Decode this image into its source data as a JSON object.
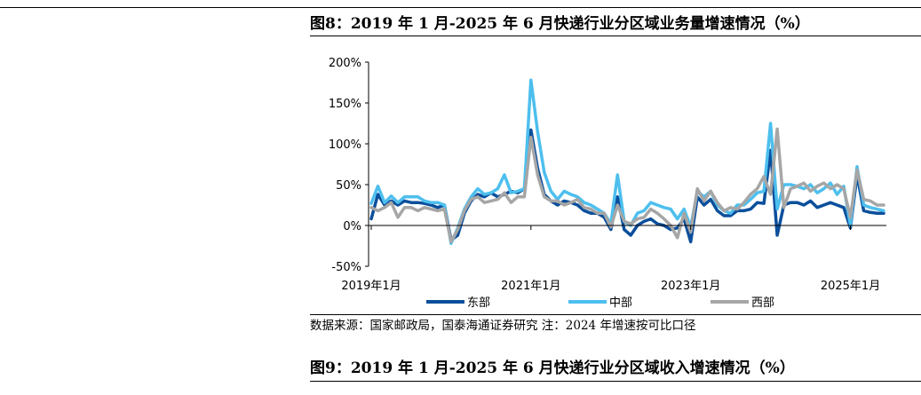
{
  "figure8": {
    "title": "图8：2019 年 1 月-2025 年 6 月快递行业分区域业务量增速情况（%）",
    "source": "数据来源：国家邮政局，国泰海通证券研究   注：2024 年增速按可比口径"
  },
  "figure9": {
    "title": "图9：2019 年 1 月-2025 年 6 月快递行业分区域收入增速情况（%）"
  },
  "colors": {
    "east": "#0b4f9c",
    "central": "#4dbfee",
    "west": "#a6a6a6",
    "axis": "#000000"
  },
  "chart_data": {
    "type": "line",
    "title": "",
    "xlabel": "",
    "ylabel": "",
    "ylim": [
      -50,
      200
    ],
    "yticks": [
      "-50%",
      "0%",
      "50%",
      "100%",
      "150%",
      "200%"
    ],
    "yticks_values": [
      -50,
      0,
      50,
      100,
      150,
      200
    ],
    "x_tick_labels": [
      {
        "index": 0,
        "label": "2019年1月"
      },
      {
        "index": 24,
        "label": "2021年1月"
      },
      {
        "index": 48,
        "label": "2023年1月"
      },
      {
        "index": 72,
        "label": "2025年1月"
      }
    ],
    "legend_position": "bottom",
    "series": [
      {
        "name": "东部",
        "values": [
          8,
          38,
          25,
          30,
          25,
          30,
          28,
          28,
          27,
          25,
          22,
          25,
          -18,
          -12,
          15,
          30,
          38,
          35,
          40,
          35,
          38,
          42,
          40,
          45,
          117,
          70,
          38,
          30,
          25,
          30,
          28,
          25,
          18,
          15,
          15,
          10,
          -5,
          35,
          -5,
          -12,
          0,
          5,
          8,
          2,
          0,
          -5,
          -3,
          8,
          -20,
          35,
          25,
          32,
          18,
          12,
          12,
          18,
          18,
          20,
          28,
          27,
          92,
          -12,
          25,
          28,
          28,
          25,
          30,
          22,
          25,
          28,
          25,
          22,
          -3,
          62,
          18,
          16,
          15,
          15
        ]
      },
      {
        "name": "中部",
        "values": [
          27,
          48,
          28,
          36,
          28,
          35,
          35,
          35,
          30,
          28,
          28,
          25,
          -22,
          -3,
          20,
          35,
          45,
          38,
          40,
          45,
          62,
          40,
          42,
          45,
          178,
          115,
          65,
          42,
          32,
          42,
          38,
          35,
          28,
          25,
          20,
          15,
          2,
          62,
          5,
          0,
          15,
          18,
          28,
          25,
          22,
          20,
          8,
          20,
          -2,
          42,
          35,
          42,
          25,
          18,
          15,
          25,
          25,
          32,
          40,
          42,
          125,
          20,
          50,
          50,
          48,
          45,
          50,
          40,
          45,
          52,
          38,
          48,
          0,
          72,
          25,
          22,
          20,
          18
        ]
      },
      {
        "name": "西部",
        "values": [
          22,
          18,
          22,
          28,
          10,
          22,
          22,
          18,
          22,
          20,
          18,
          20,
          -20,
          -5,
          18,
          32,
          35,
          28,
          30,
          32,
          40,
          28,
          35,
          35,
          108,
          62,
          35,
          30,
          30,
          25,
          28,
          32,
          22,
          20,
          15,
          15,
          -2,
          25,
          5,
          2,
          8,
          10,
          20,
          15,
          8,
          0,
          -15,
          15,
          -8,
          45,
          30,
          42,
          28,
          18,
          22,
          20,
          28,
          38,
          45,
          60,
          38,
          118,
          22,
          45,
          48,
          52,
          42,
          48,
          52,
          45,
          50,
          45,
          10,
          68,
          32,
          30,
          25,
          25
        ]
      }
    ]
  }
}
